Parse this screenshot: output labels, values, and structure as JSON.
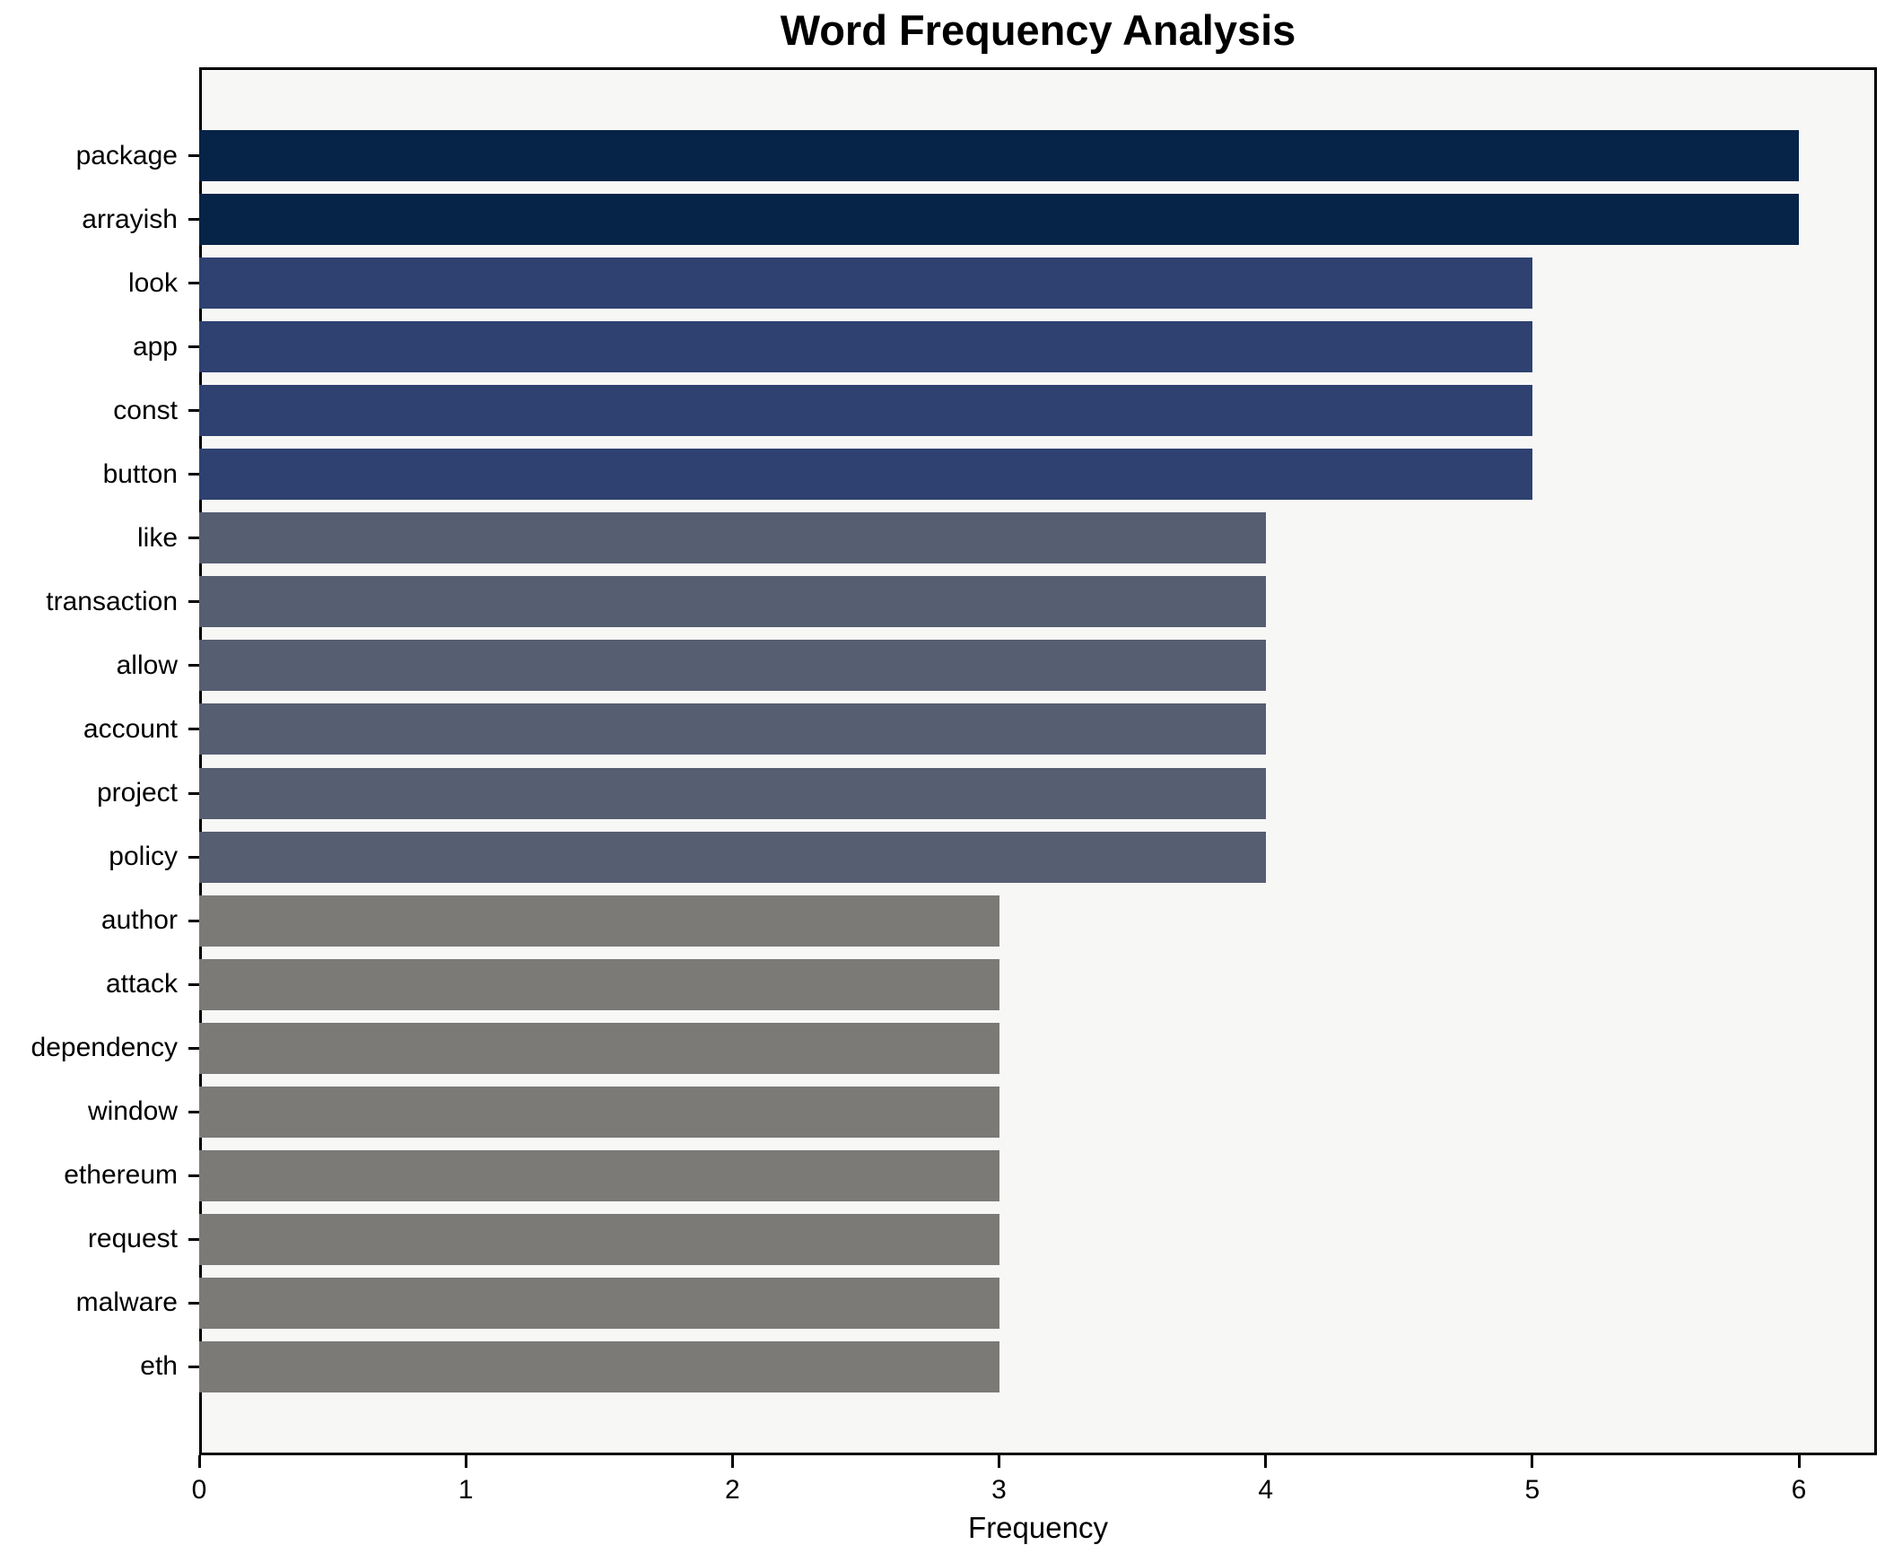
{
  "title": "Word Frequency Analysis",
  "x_axis_label": "Frequency",
  "chart_data": {
    "type": "bar",
    "orientation": "horizontal",
    "title": "Word Frequency Analysis",
    "xlabel": "Frequency",
    "ylabel": "",
    "categories": [
      "package",
      "arrayish",
      "look",
      "app",
      "const",
      "button",
      "like",
      "transaction",
      "allow",
      "account",
      "project",
      "policy",
      "author",
      "attack",
      "dependency",
      "window",
      "ethereum",
      "request",
      "malware",
      "eth"
    ],
    "values": [
      6,
      6,
      5,
      5,
      5,
      5,
      4,
      4,
      4,
      4,
      4,
      4,
      3,
      3,
      3,
      3,
      3,
      3,
      3,
      3
    ],
    "xticks": [
      0,
      1,
      2,
      3,
      4,
      5,
      6
    ],
    "xlim": [
      0,
      6.3
    ],
    "grid": false,
    "legend": null,
    "plot_background": "#f7f7f6",
    "figure_background": "#ffffff",
    "spine_color": "#000000",
    "value_colors": {
      "6": "#062348",
      "5": "#2e4170",
      "4": "#565e72",
      "3": "#7b7a77"
    }
  }
}
